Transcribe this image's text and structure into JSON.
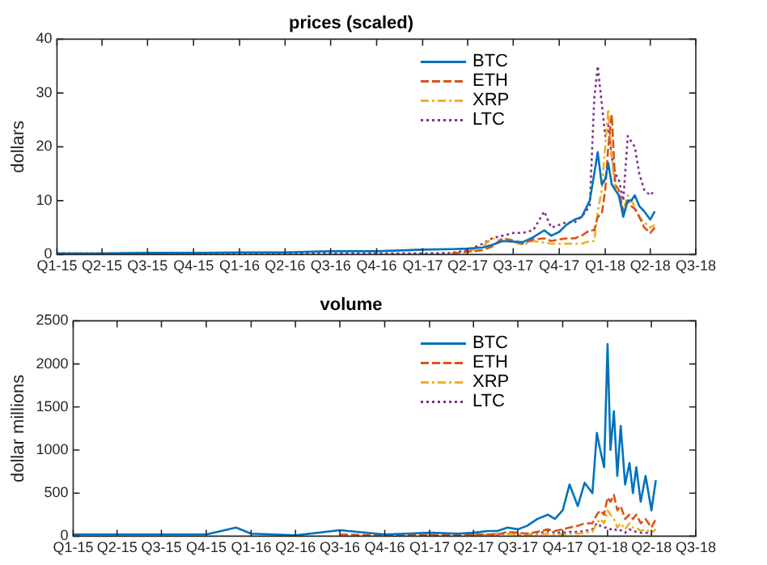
{
  "chart_data": [
    {
      "type": "line",
      "title": "prices (scaled)",
      "ylabel": "dollars",
      "legend": "top right",
      "grid": false,
      "x": [
        "2015-01-01",
        "2015-04-01",
        "2015-07-01",
        "2015-10-01",
        "2016-01-01",
        "2016-04-01",
        "2016-07-01",
        "2016-10-01",
        "2017-01-01",
        "2017-03-01",
        "2017-04-01",
        "2017-05-01",
        "2017-05-20",
        "2017-06-10",
        "2017-07-01",
        "2017-07-20",
        "2017-08-10",
        "2017-09-01",
        "2017-09-15",
        "2017-10-01",
        "2017-10-15",
        "2017-11-01",
        "2017-11-15",
        "2017-12-01",
        "2017-12-10",
        "2017-12-17",
        "2017-12-25",
        "2018-01-01",
        "2018-01-07",
        "2018-01-14",
        "2018-01-21",
        "2018-01-28",
        "2018-02-06",
        "2018-02-15",
        "2018-02-22",
        "2018-03-01",
        "2018-03-10",
        "2018-03-20",
        "2018-04-01",
        "2018-04-10"
      ],
      "xlim": [
        "2015-01-01",
        "2018-07-01"
      ],
      "xticks": [
        {
          "value": "2015-01-01",
          "label": "Q1-15"
        },
        {
          "value": "2015-04-01",
          "label": "Q2-15"
        },
        {
          "value": "2015-07-01",
          "label": "Q3-15"
        },
        {
          "value": "2015-10-01",
          "label": "Q4-15"
        },
        {
          "value": "2016-01-01",
          "label": "Q1-16"
        },
        {
          "value": "2016-04-01",
          "label": "Q2-16"
        },
        {
          "value": "2016-07-01",
          "label": "Q3-16"
        },
        {
          "value": "2016-10-01",
          "label": "Q4-16"
        },
        {
          "value": "2017-01-01",
          "label": "Q1-17"
        },
        {
          "value": "2017-04-01",
          "label": "Q2-17"
        },
        {
          "value": "2017-07-01",
          "label": "Q3-17"
        },
        {
          "value": "2017-10-01",
          "label": "Q4-17"
        },
        {
          "value": "2018-01-01",
          "label": "Q1-18"
        },
        {
          "value": "2018-04-01",
          "label": "Q2-18"
        },
        {
          "value": "2018-07-01",
          "label": "Q3-18"
        }
      ],
      "ylim": [
        0,
        40
      ],
      "yticks": [
        0,
        10,
        20,
        30,
        40
      ],
      "series": [
        {
          "name": "BTC",
          "color": "#0072bd",
          "line_style": "solid",
          "values": [
            0.2,
            0.2,
            0.3,
            0.3,
            0.4,
            0.4,
            0.6,
            0.6,
            0.9,
            1,
            1.1,
            1.3,
            1.8,
            2.5,
            2.4,
            2.3,
            3.2,
            4.5,
            3.5,
            4.2,
            5.5,
            6.5,
            7,
            10,
            15,
            19,
            13,
            14,
            17,
            13,
            12,
            11,
            7,
            10,
            10,
            11,
            9,
            8,
            6.5,
            8
          ]
        },
        {
          "name": "ETH",
          "color": "#d95319",
          "line_style": "dashed",
          "values": [
            null,
            null,
            null,
            null,
            null,
            null,
            null,
            null,
            null,
            0.2,
            0.5,
            0.8,
            1.5,
            3,
            2.6,
            2,
            2.8,
            3,
            2.5,
            2.8,
            3,
            3,
            3.5,
            4.5,
            4.5,
            7,
            7.5,
            12,
            20,
            26,
            13,
            12,
            8,
            10,
            9,
            8.5,
            7,
            5,
            4,
            5
          ]
        },
        {
          "name": "XRP",
          "color": "#edb120",
          "line_style": "dashdot",
          "values": [
            null,
            null,
            null,
            null,
            null,
            null,
            null,
            null,
            null,
            null,
            0.5,
            1.5,
            3,
            2.5,
            2.3,
            1.8,
            2.5,
            2.2,
            2,
            2,
            2,
            2,
            2,
            2.5,
            2.5,
            8,
            12,
            20,
            27,
            18,
            12,
            11,
            8,
            11,
            10,
            9,
            7,
            6,
            5,
            5.5
          ]
        },
        {
          "name": "LTC",
          "color": "#7e2f8e",
          "line_style": "dotted",
          "values": [
            0.2,
            0.2,
            0.2,
            0.2,
            0.2,
            0.2,
            0.2,
            0.2,
            0.2,
            0.3,
            0.8,
            2,
            3,
            3.5,
            4,
            4,
            4.5,
            8,
            5,
            5.5,
            6,
            6,
            7,
            9,
            29,
            35,
            28,
            22,
            24,
            18,
            15,
            14,
            10,
            22,
            21,
            20,
            15,
            12,
            11,
            12
          ]
        }
      ]
    },
    {
      "type": "line",
      "title": "volume",
      "ylabel": "dollar millions",
      "legend": "top right",
      "grid": false,
      "x": [
        "2015-01-01",
        "2015-04-01",
        "2015-07-01",
        "2015-10-01",
        "2015-12-01",
        "2016-01-01",
        "2016-04-01",
        "2016-07-01",
        "2016-10-01",
        "2017-01-01",
        "2017-03-01",
        "2017-04-01",
        "2017-05-01",
        "2017-05-20",
        "2017-06-10",
        "2017-07-01",
        "2017-07-20",
        "2017-08-10",
        "2017-09-01",
        "2017-09-15",
        "2017-10-01",
        "2017-10-15",
        "2017-11-01",
        "2017-11-15",
        "2017-12-01",
        "2017-12-10",
        "2017-12-17",
        "2017-12-25",
        "2018-01-01",
        "2018-01-07",
        "2018-01-14",
        "2018-01-21",
        "2018-01-28",
        "2018-02-06",
        "2018-02-15",
        "2018-02-22",
        "2018-03-01",
        "2018-03-10",
        "2018-03-20",
        "2018-04-01",
        "2018-04-10"
      ],
      "xlim": [
        "2015-01-01",
        "2018-07-01"
      ],
      "xticks": [
        {
          "value": "2015-01-01",
          "label": "Q1-15"
        },
        {
          "value": "2015-04-01",
          "label": "Q2-15"
        },
        {
          "value": "2015-07-01",
          "label": "Q3-15"
        },
        {
          "value": "2015-10-01",
          "label": "Q4-15"
        },
        {
          "value": "2016-01-01",
          "label": "Q1-16"
        },
        {
          "value": "2016-04-01",
          "label": "Q2-16"
        },
        {
          "value": "2016-07-01",
          "label": "Q3-16"
        },
        {
          "value": "2016-10-01",
          "label": "Q4-16"
        },
        {
          "value": "2017-01-01",
          "label": "Q1-17"
        },
        {
          "value": "2017-04-01",
          "label": "Q2-17"
        },
        {
          "value": "2017-07-01",
          "label": "Q3-17"
        },
        {
          "value": "2017-10-01",
          "label": "Q4-17"
        },
        {
          "value": "2018-01-01",
          "label": "Q1-18"
        },
        {
          "value": "2018-04-01",
          "label": "Q2-18"
        },
        {
          "value": "2018-07-01",
          "label": "Q3-18"
        }
      ],
      "ylim": [
        0,
        2500
      ],
      "yticks": [
        0,
        500,
        1000,
        1500,
        2000,
        2500
      ],
      "series": [
        {
          "name": "BTC",
          "color": "#0072bd",
          "line_style": "solid",
          "values": [
            20,
            20,
            20,
            20,
            100,
            30,
            10,
            70,
            20,
            40,
            30,
            40,
            60,
            60,
            100,
            80,
            120,
            200,
            250,
            200,
            300,
            600,
            350,
            620,
            500,
            1200,
            1000,
            800,
            2230,
            1000,
            1450,
            700,
            1280,
            600,
            850,
            500,
            800,
            400,
            700,
            300,
            650
          ]
        },
        {
          "name": "ETH",
          "color": "#d95319",
          "line_style": "dashed",
          "values": [
            null,
            null,
            null,
            null,
            null,
            null,
            null,
            20,
            10,
            10,
            10,
            20,
            20,
            20,
            50,
            40,
            30,
            50,
            80,
            60,
            80,
            100,
            120,
            150,
            150,
            250,
            300,
            250,
            450,
            400,
            480,
            300,
            350,
            200,
            250,
            200,
            250,
            150,
            200,
            100,
            200
          ]
        },
        {
          "name": "XRP",
          "color": "#edb120",
          "line_style": "dashdot",
          "values": [
            null,
            null,
            null,
            null,
            null,
            null,
            null,
            null,
            null,
            null,
            null,
            10,
            20,
            30,
            30,
            20,
            15,
            20,
            30,
            20,
            20,
            30,
            30,
            40,
            50,
            150,
            200,
            150,
            300,
            250,
            200,
            100,
            150,
            80,
            150,
            100,
            100,
            60,
            80,
            40,
            80
          ]
        },
        {
          "name": "LTC",
          "color": "#7e2f8e",
          "line_style": "dotted",
          "values": [
            null,
            null,
            null,
            null,
            null,
            null,
            null,
            null,
            null,
            null,
            null,
            10,
            20,
            20,
            30,
            20,
            20,
            30,
            60,
            40,
            40,
            50,
            50,
            60,
            80,
            150,
            120,
            100,
            100,
            80,
            90,
            60,
            70,
            40,
            80,
            60,
            50,
            40,
            40,
            30,
            null
          ]
        }
      ]
    }
  ]
}
